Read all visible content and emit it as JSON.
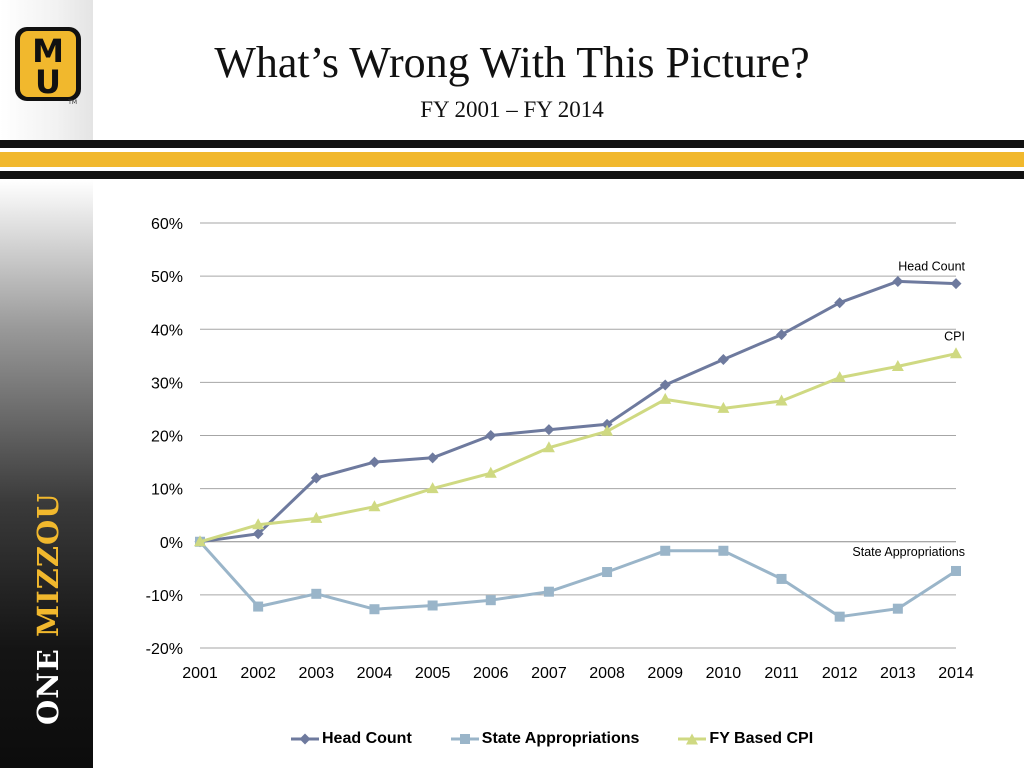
{
  "slide": {
    "title": "What’s Wrong With This Picture?",
    "subtitle": "FY 2001 – FY 2014",
    "logo_letters": [
      "M",
      "U"
    ],
    "logo_tm": "TM",
    "sidebar_one": "ONE",
    "sidebar_mizzou": "MIZZOU",
    "colors": {
      "gold": "#f1b82d",
      "black": "#111111"
    }
  },
  "chart_data": {
    "type": "line",
    "x": [
      2001,
      2002,
      2003,
      2004,
      2005,
      2006,
      2007,
      2008,
      2009,
      2010,
      2011,
      2012,
      2013,
      2014
    ],
    "ylim": [
      -20,
      60
    ],
    "yticks": [
      -20,
      -10,
      0,
      10,
      20,
      30,
      40,
      50,
      60
    ],
    "ytick_labels": [
      "-20%",
      "-10%",
      "0%",
      "10%",
      "20%",
      "30%",
      "40%",
      "50%",
      "60%"
    ],
    "grid": true,
    "legend_position": "bottom",
    "series": [
      {
        "name": "Head Count",
        "label": "Head Count",
        "color": "#6e7a9e",
        "marker": "diamond",
        "values": [
          0,
          1.5,
          12,
          15,
          15.8,
          20,
          21.1,
          22.1,
          29.5,
          34.3,
          39,
          45,
          49,
          48.6
        ]
      },
      {
        "name": "State Appropriations",
        "label": "State Appropriations",
        "color": "#9ab5c9",
        "marker": "square",
        "values": [
          0,
          -12.2,
          -9.8,
          -12.7,
          -12,
          -11,
          -9.4,
          -5.7,
          -1.7,
          -1.7,
          -7,
          -14.1,
          -12.6,
          -5.5
        ]
      },
      {
        "name": "FY Based CPI",
        "label": "CPI",
        "color": "#cfd982",
        "marker": "triangle",
        "values": [
          0,
          3.2,
          4.4,
          6.6,
          10,
          12.9,
          17.7,
          20.8,
          26.8,
          25.1,
          26.5,
          30.9,
          33,
          35.4
        ]
      }
    ]
  }
}
